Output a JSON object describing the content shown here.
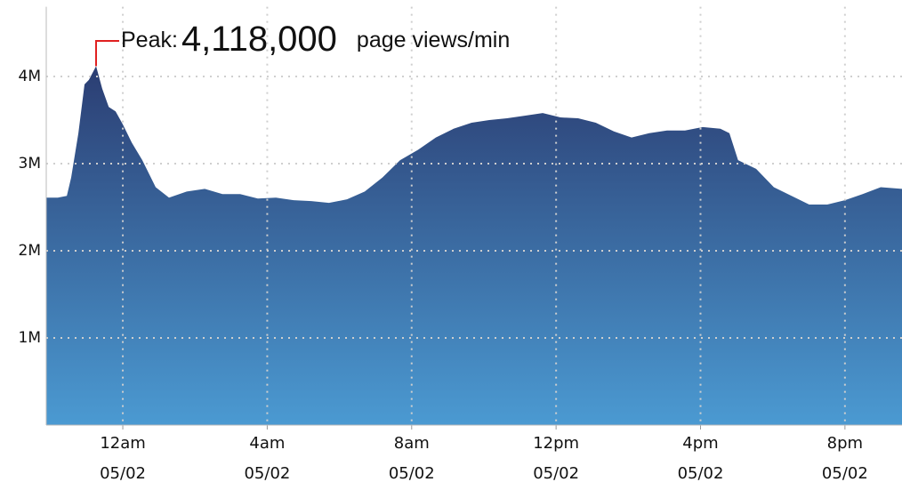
{
  "chart_data": {
    "type": "area",
    "x": [
      -2.12,
      -1.8,
      -1.55,
      -1.43,
      -1.23,
      -1.06,
      -0.94,
      -0.74,
      -0.57,
      -0.39,
      -0.2,
      0,
      0.25,
      0.54,
      0.91,
      1.28,
      1.77,
      2.27,
      2.76,
      3.25,
      3.74,
      4.24,
      4.73,
      5.22,
      5.71,
      6.21,
      6.7,
      7.19,
      7.68,
      8.18,
      8.67,
      9.16,
      9.66,
      10.15,
      10.64,
      11.13,
      11.63,
      12.12,
      12.61,
      13.1,
      13.6,
      14.09,
      14.58,
      15.07,
      15.57,
      16.06,
      16.55,
      16.8,
      17.04,
      17.54,
      18.03,
      18.52,
      19.01,
      19.51,
      20.0,
      20.49,
      20.99,
      21.58
    ],
    "series": [
      {
        "color": "#2b3d72",
        "color_bottom": "#4b9ad2",
        "values": [
          2610000,
          2610000,
          2630000,
          2840000,
          3350000,
          3910000,
          3960000,
          4118000,
          3860000,
          3650000,
          3600000,
          3450000,
          3240000,
          3040000,
          2730000,
          2610000,
          2680000,
          2710000,
          2650000,
          2650000,
          2600000,
          2610000,
          2580000,
          2570000,
          2550000,
          2590000,
          2680000,
          2840000,
          3040000,
          3160000,
          3300000,
          3400000,
          3470000,
          3500000,
          3520000,
          3550000,
          3580000,
          3530000,
          3520000,
          3470000,
          3370000,
          3300000,
          3350000,
          3380000,
          3380000,
          3420000,
          3400000,
          3350000,
          3040000,
          2940000,
          2730000,
          2630000,
          2530000,
          2530000,
          2580000,
          2650000,
          2730000,
          2710000
        ]
      }
    ],
    "xlim": [
      -2.12,
      21.58
    ],
    "xticks": [
      {
        "value": 0,
        "label": "12am\n05/02"
      },
      {
        "value": 4,
        "label": "4am\n05/02"
      },
      {
        "value": 8,
        "label": "8am\n05/02"
      },
      {
        "value": 12,
        "label": "12pm\n05/02"
      },
      {
        "value": 16,
        "label": "4pm\n05/02"
      },
      {
        "value": 20,
        "label": "8pm\n05/02"
      }
    ],
    "ylim": [
      0,
      4800000
    ],
    "yticks": [
      {
        "value": 1000000,
        "label": "1M"
      },
      {
        "value": 2000000,
        "label": "2M"
      },
      {
        "value": 3000000,
        "label": "3M"
      },
      {
        "value": 4000000,
        "label": "4M"
      }
    ],
    "grid": true,
    "peak": {
      "x": -0.74,
      "value": 4118000,
      "value_label": "4,118,000",
      "prefix": "Peak:",
      "suffix": "page views/min",
      "color": "#e02020"
    }
  }
}
